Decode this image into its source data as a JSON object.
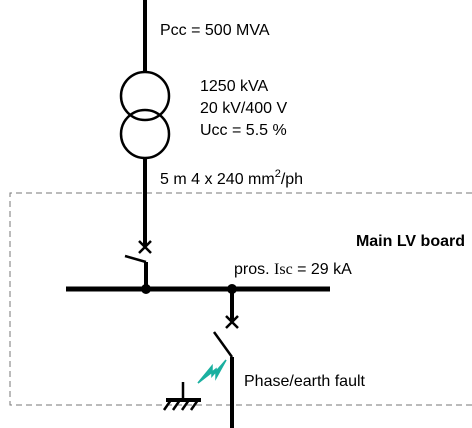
{
  "supply": {
    "label": "Pcc = 500 MVA"
  },
  "transformer": {
    "rating": "1250 kVA",
    "voltage": "20 kV/400 V",
    "ucc": "Ucc = 5.5 %"
  },
  "cable": {
    "label": [
      "5 m  4 x 240 mm",
      "2",
      "/ph"
    ]
  },
  "board": {
    "title": "Main LV board",
    "isc": [
      "pros. ",
      "Isc",
      " = 29 kA"
    ]
  },
  "fault": {
    "label": "Phase/earth fault"
  }
}
